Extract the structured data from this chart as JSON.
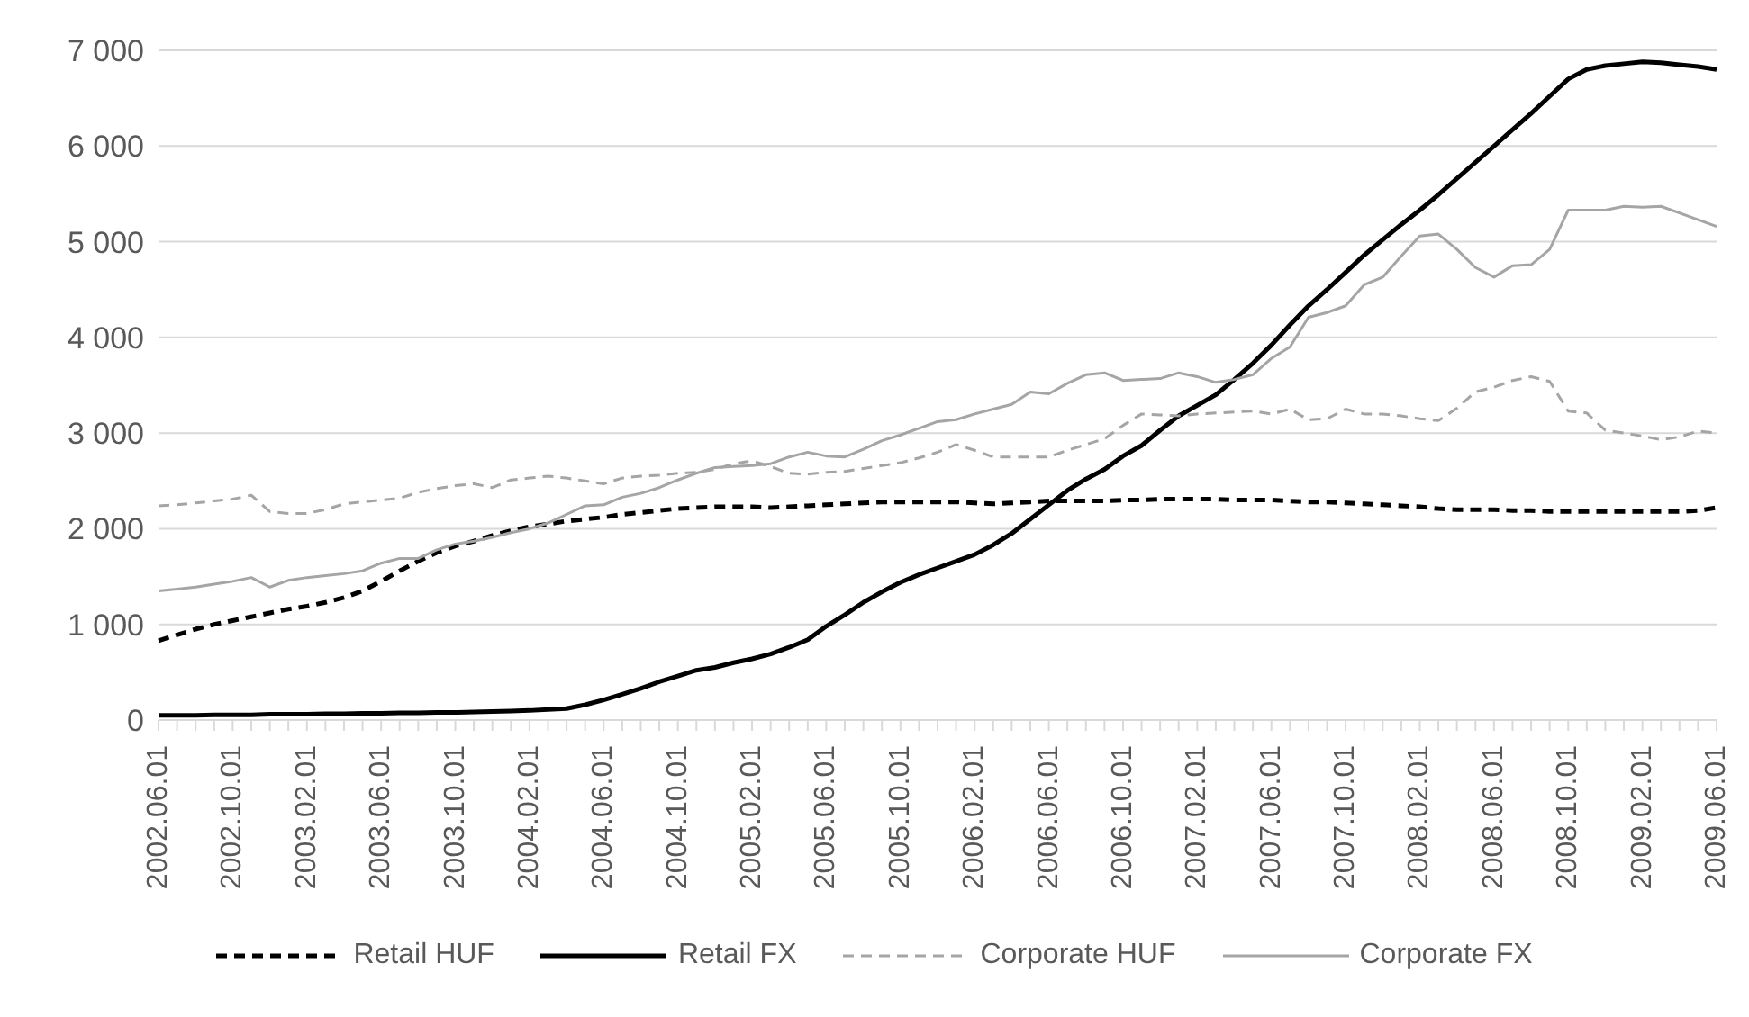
{
  "chart_data": {
    "type": "line",
    "categories": [
      "2002.06.01",
      null,
      null,
      null,
      "2002.10.01",
      null,
      null,
      null,
      "2003.02.01",
      null,
      null,
      null,
      "2003.06.01",
      null,
      null,
      null,
      "2003.10.01",
      null,
      null,
      null,
      "2004.02.01",
      null,
      null,
      null,
      "2004.06.01",
      null,
      null,
      null,
      "2004.10.01",
      null,
      null,
      null,
      "2005.02.01",
      null,
      null,
      null,
      "2005.06.01",
      null,
      null,
      null,
      "2005.10.01",
      null,
      null,
      null,
      "2006.02.01",
      null,
      null,
      null,
      "2006.06.01",
      null,
      null,
      null,
      "2006.10.01",
      null,
      null,
      null,
      "2007.02.01",
      null,
      null,
      null,
      "2007.06.01",
      null,
      null,
      null,
      "2007.10.01",
      null,
      null,
      null,
      "2008.02.01",
      null,
      null,
      null,
      "2008.06.01",
      null,
      null,
      null,
      "2008.10.01",
      null,
      null,
      null,
      "2009.02.01",
      null,
      null,
      null,
      "2009.06.01"
    ],
    "series": [
      {
        "name": "Retail HUF",
        "color": "#000000",
        "line_style": "dashed",
        "values": [
          830,
          890,
          950,
          1000,
          1040,
          1080,
          1120,
          1160,
          1190,
          1230,
          1280,
          1350,
          1450,
          1560,
          1660,
          1750,
          1820,
          1870,
          1930,
          1980,
          2020,
          2050,
          2080,
          2100,
          2120,
          2150,
          2170,
          2190,
          2210,
          2220,
          2230,
          2230,
          2230,
          2220,
          2230,
          2240,
          2250,
          2260,
          2270,
          2280,
          2280,
          2280,
          2280,
          2280,
          2270,
          2260,
          2270,
          2280,
          2290,
          2290,
          2290,
          2290,
          2300,
          2300,
          2310,
          2310,
          2310,
          2310,
          2300,
          2300,
          2300,
          2290,
          2280,
          2280,
          2270,
          2260,
          2250,
          2240,
          2230,
          2210,
          2200,
          2200,
          2200,
          2190,
          2190,
          2180,
          2180,
          2180,
          2180,
          2180,
          2180,
          2180,
          2180,
          2190,
          2220
        ]
      },
      {
        "name": "Retail FX",
        "color": "#000000",
        "line_style": "solid",
        "values": [
          50,
          50,
          50,
          55,
          55,
          55,
          60,
          60,
          60,
          65,
          65,
          70,
          70,
          75,
          75,
          80,
          80,
          85,
          90,
          95,
          100,
          110,
          120,
          160,
          210,
          270,
          330,
          400,
          460,
          520,
          550,
          600,
          640,
          690,
          760,
          840,
          980,
          1100,
          1230,
          1340,
          1440,
          1520,
          1590,
          1660,
          1730,
          1830,
          1950,
          2100,
          2250,
          2400,
          2520,
          2620,
          2760,
          2870,
          3030,
          3180,
          3290,
          3400,
          3560,
          3730,
          3920,
          4130,
          4330,
          4500,
          4680,
          4860,
          5020,
          5180,
          5330,
          5490,
          5660,
          5830,
          6000,
          6170,
          6340,
          6520,
          6700,
          6800,
          6840,
          6860,
          6880,
          6870,
          6850,
          6830,
          6800
        ]
      },
      {
        "name": "Corporate HUF",
        "color": "#a5a5a5",
        "line_style": "dashed",
        "values": [
          2240,
          2250,
          2270,
          2290,
          2310,
          2350,
          2180,
          2160,
          2160,
          2200,
          2260,
          2280,
          2300,
          2320,
          2380,
          2420,
          2450,
          2470,
          2430,
          2510,
          2530,
          2550,
          2530,
          2500,
          2470,
          2530,
          2550,
          2560,
          2580,
          2590,
          2620,
          2680,
          2710,
          2650,
          2580,
          2570,
          2590,
          2600,
          2630,
          2660,
          2690,
          2740,
          2800,
          2880,
          2820,
          2750,
          2750,
          2750,
          2750,
          2820,
          2880,
          2940,
          3080,
          3200,
          3190,
          3180,
          3200,
          3210,
          3220,
          3230,
          3200,
          3250,
          3140,
          3150,
          3250,
          3200,
          3200,
          3180,
          3150,
          3130,
          3260,
          3430,
          3480,
          3550,
          3590,
          3540,
          3230,
          3210,
          3030,
          3000,
          2970,
          2930,
          2960,
          3020,
          3000
        ]
      },
      {
        "name": "Corporate FX",
        "color": "#a5a5a5",
        "line_style": "solid",
        "values": [
          1350,
          1370,
          1390,
          1420,
          1450,
          1490,
          1390,
          1460,
          1490,
          1510,
          1530,
          1560,
          1640,
          1690,
          1690,
          1780,
          1840,
          1870,
          1910,
          1960,
          2000,
          2060,
          2150,
          2240,
          2250,
          2330,
          2370,
          2430,
          2510,
          2580,
          2640,
          2650,
          2660,
          2680,
          2750,
          2800,
          2760,
          2750,
          2830,
          2920,
          2980,
          3050,
          3120,
          3140,
          3200,
          3250,
          3300,
          3430,
          3410,
          3520,
          3610,
          3630,
          3550,
          3560,
          3570,
          3630,
          3590,
          3530,
          3560,
          3610,
          3780,
          3900,
          4210,
          4260,
          4330,
          4550,
          4630,
          4850,
          5060,
          5080,
          4920,
          4730,
          4630,
          4750,
          4760,
          4920,
          5330,
          5330,
          5330,
          5370,
          5360,
          5370,
          5300,
          5230,
          5160
        ]
      }
    ],
    "ylim": [
      0,
      7000
    ],
    "yticks": [
      0,
      {
        "value": 1000,
        "label": "1 000"
      },
      {
        "value": 2000,
        "label": "2 000"
      },
      {
        "value": 3000,
        "label": "3 000"
      },
      {
        "value": 4000,
        "label": "4 000"
      },
      {
        "value": 5000,
        "label": "5 000"
      },
      {
        "value": 6000,
        "label": "6 000"
      },
      {
        "value": 7000,
        "label": "7 000"
      }
    ],
    "grid": "y",
    "legend": "bottom",
    "marker": "none"
  }
}
